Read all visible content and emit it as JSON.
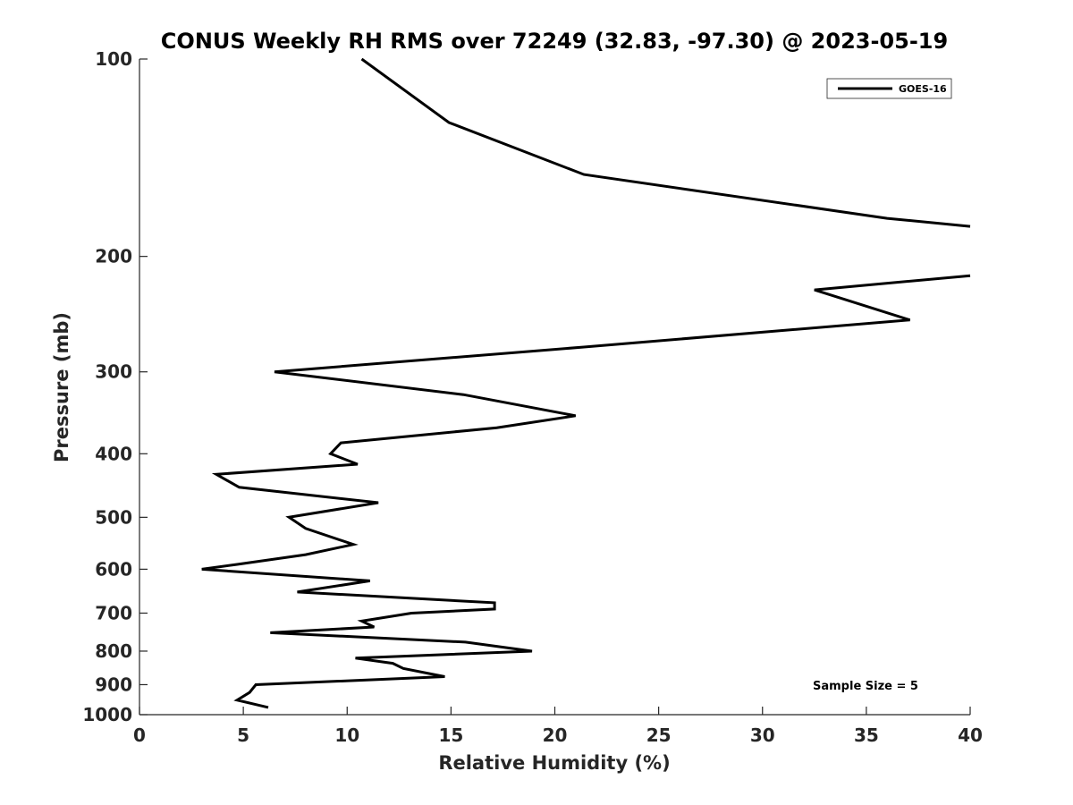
{
  "chart_data": {
    "type": "line",
    "title": "CONUS Weekly RH RMS over 72249 (32.83, -97.30) @ 2023-05-19",
    "xlabel": "Relative Humidity (%)",
    "ylabel": "Pressure (mb)",
    "xlim": [
      0,
      40
    ],
    "ylim": [
      100,
      1000
    ],
    "y_scale": "log",
    "y_reversed": true,
    "x_ticks": [
      0,
      5,
      10,
      15,
      20,
      25,
      30,
      35,
      40
    ],
    "y_ticks": [
      100,
      200,
      300,
      400,
      500,
      600,
      700,
      800,
      900,
      1000
    ],
    "grid": false,
    "legend_position": "top-right",
    "annotation": "Sample Size = 5",
    "series": [
      {
        "name": "GOES-16",
        "color": "#000000",
        "segments": [
          [
            {
              "x": 10.7,
              "p": 100
            },
            {
              "x": 14.9,
              "p": 125
            },
            {
              "x": 21.4,
              "p": 150
            },
            {
              "x": 36.0,
              "p": 175
            },
            {
              "x": 40.0,
              "p": 180
            }
          ],
          [
            {
              "x": 40.0,
              "p": 214
            },
            {
              "x": 32.5,
              "p": 225
            },
            {
              "x": 37.1,
              "p": 250
            },
            {
              "x": 21.4,
              "p": 275
            },
            {
              "x": 6.5,
              "p": 300
            },
            {
              "x": 15.6,
              "p": 325
            },
            {
              "x": 21.0,
              "p": 350
            },
            {
              "x": 17.2,
              "p": 365
            },
            {
              "x": 9.7,
              "p": 385
            },
            {
              "x": 9.2,
              "p": 400
            },
            {
              "x": 10.5,
              "p": 415
            },
            {
              "x": 3.7,
              "p": 430
            },
            {
              "x": 4.8,
              "p": 450
            },
            {
              "x": 11.5,
              "p": 475
            },
            {
              "x": 7.2,
              "p": 500
            },
            {
              "x": 8.0,
              "p": 520
            },
            {
              "x": 10.3,
              "p": 550
            },
            {
              "x": 8.0,
              "p": 570
            },
            {
              "x": 4.7,
              "p": 590
            },
            {
              "x": 3.0,
              "p": 600
            },
            {
              "x": 11.1,
              "p": 625
            },
            {
              "x": 7.6,
              "p": 650
            },
            {
              "x": 17.1,
              "p": 675
            },
            {
              "x": 17.1,
              "p": 690
            },
            {
              "x": 13.1,
              "p": 700
            },
            {
              "x": 10.7,
              "p": 720
            },
            {
              "x": 11.3,
              "p": 735
            },
            {
              "x": 6.3,
              "p": 750
            },
            {
              "x": 15.7,
              "p": 775
            },
            {
              "x": 18.9,
              "p": 800
            },
            {
              "x": 10.4,
              "p": 820
            },
            {
              "x": 12.2,
              "p": 835
            },
            {
              "x": 12.7,
              "p": 850
            },
            {
              "x": 14.7,
              "p": 875
            },
            {
              "x": 5.6,
              "p": 900
            },
            {
              "x": 5.3,
              "p": 925
            },
            {
              "x": 4.7,
              "p": 950
            },
            {
              "x": 6.2,
              "p": 975
            }
          ]
        ]
      }
    ]
  }
}
